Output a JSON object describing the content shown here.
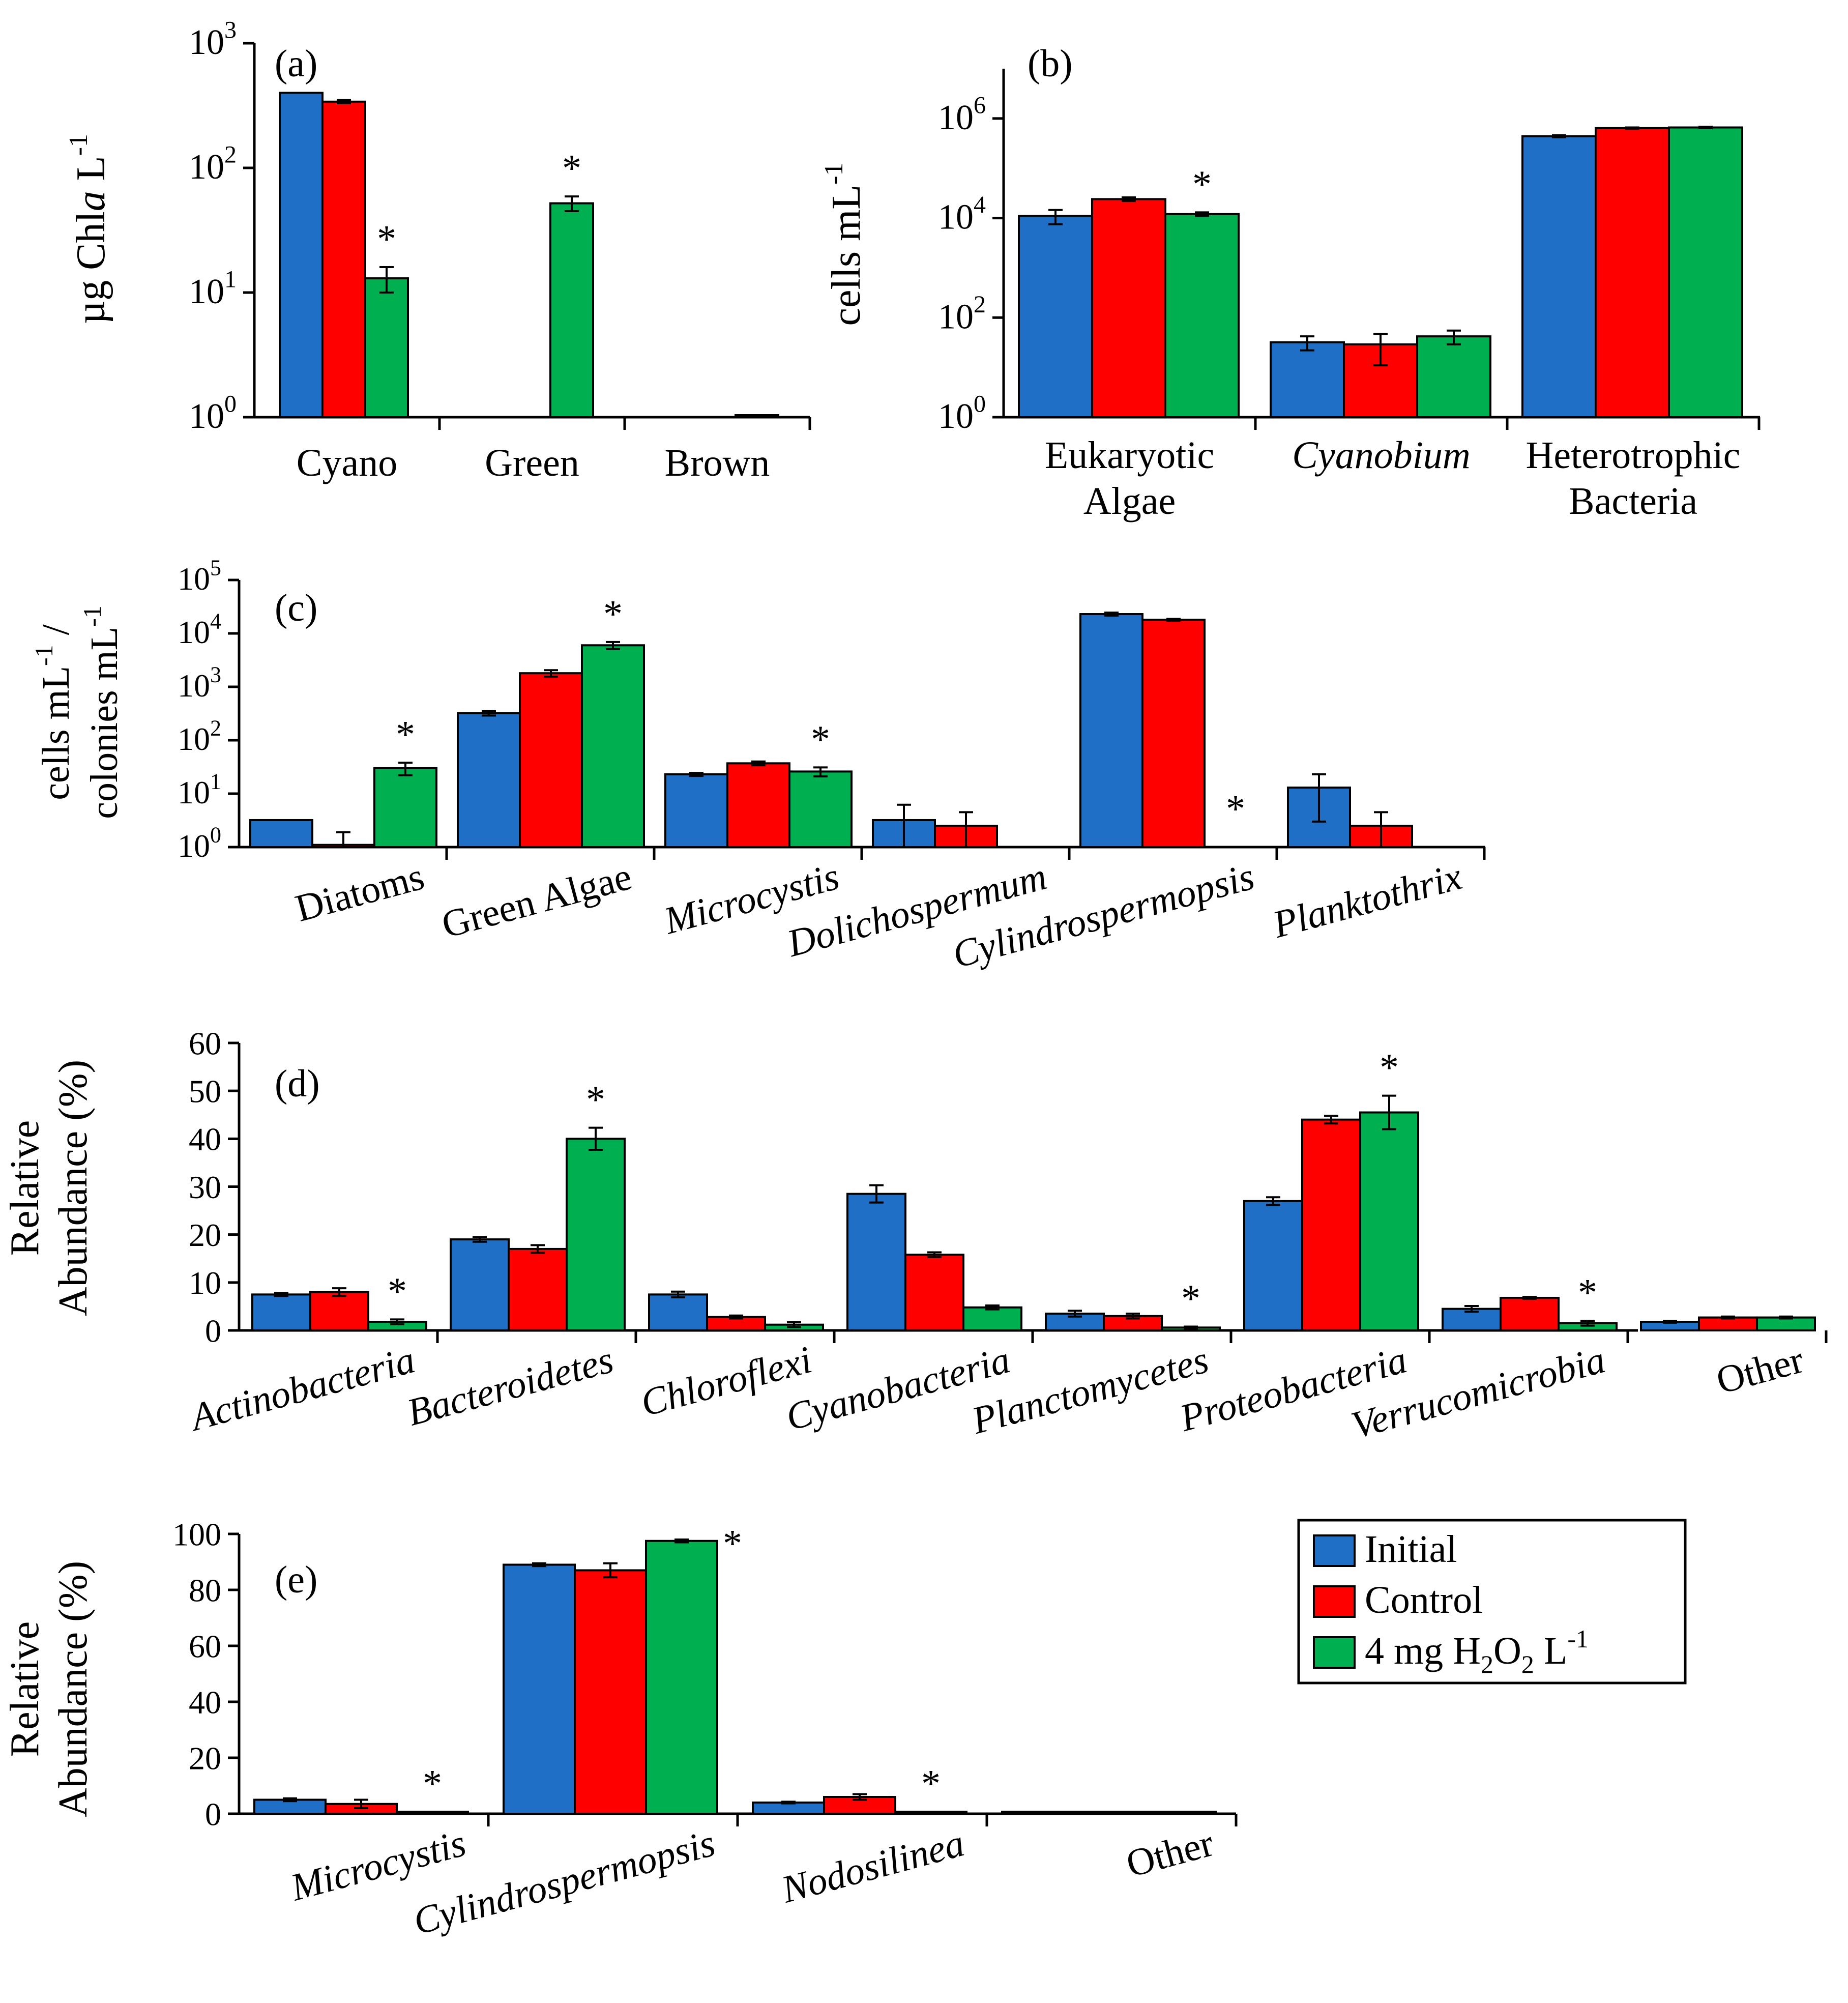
{
  "colors": {
    "initial": "#1f6fc6",
    "control": "#ff0000",
    "h2o2": "#00b050"
  },
  "legend": {
    "entries": [
      {
        "label": "Initial",
        "color": "#1f6fc6"
      },
      {
        "label": "Control",
        "color": "#ff0000"
      },
      {
        "label_parts": [
          "4 mg H",
          "2",
          "O",
          "2",
          " L",
          "-1"
        ],
        "color": "#00b050"
      }
    ]
  },
  "chart_data": [
    {
      "id": "a",
      "panel_label": "(a)",
      "type": "bar",
      "scale": "log",
      "ylim": [
        1,
        1000
      ],
      "yticks": [
        {
          "base": "10",
          "exp": "0"
        },
        {
          "base": "10",
          "exp": "1"
        },
        {
          "base": "10",
          "exp": "2"
        },
        {
          "base": "10",
          "exp": "3"
        }
      ],
      "ylabel_parts": [
        "µg Chl",
        "a",
        " L",
        "-1"
      ],
      "categories": [
        {
          "label": "Cyano",
          "italic": false
        },
        {
          "label": "Green",
          "italic": false
        },
        {
          "label": "Brown",
          "italic": false
        }
      ],
      "series": [
        {
          "name": "Initial",
          "values": [
            400,
            null,
            null
          ],
          "errors": [
            0,
            0,
            0
          ]
        },
        {
          "name": "Control",
          "values": [
            340,
            null,
            null
          ],
          "errors": [
            10,
            0,
            0
          ]
        },
        {
          "name": "4 mg H2O2 L-1",
          "values": [
            13,
            52,
            1.0
          ],
          "errors": [
            3,
            7,
            0
          ]
        }
      ],
      "significance": [
        "*",
        "*",
        ""
      ]
    },
    {
      "id": "b",
      "panel_label": "(b)",
      "type": "bar",
      "scale": "log",
      "ylim": [
        1,
        10000000
      ],
      "yticks": [
        {
          "base": "10",
          "exp": "0"
        },
        {
          "base": "10",
          "exp": "2"
        },
        {
          "base": "10",
          "exp": "4"
        },
        {
          "base": "10",
          "exp": "6"
        }
      ],
      "ylabel_parts": [
        "cells mL",
        "-1"
      ],
      "categories": [
        {
          "lines": [
            "Eukaryotic",
            "Algae"
          ],
          "italic": false
        },
        {
          "lines": [
            "Cyanobium"
          ],
          "italic": true
        },
        {
          "lines": [
            "Heterotrophic",
            "Bacteria"
          ],
          "italic": false
        }
      ],
      "series": [
        {
          "name": "Initial",
          "values": [
            11000,
            32,
            440000
          ],
          "errors": [
            3500,
            10,
            20000
          ]
        },
        {
          "name": "Control",
          "values": [
            24000,
            29,
            640000
          ],
          "errors": [
            2000,
            18,
            20000
          ]
        },
        {
          "name": "4 mg H2O2 L-1",
          "values": [
            12000,
            42,
            660000
          ],
          "errors": [
            1000,
            13,
            20000
          ]
        }
      ],
      "significance": [
        "*",
        "",
        ""
      ]
    },
    {
      "id": "c",
      "panel_label": "(c)",
      "type": "bar",
      "scale": "log",
      "ylim": [
        1,
        100000
      ],
      "yticks": [
        {
          "base": "10",
          "exp": "0"
        },
        {
          "base": "10",
          "exp": "1"
        },
        {
          "base": "10",
          "exp": "2"
        },
        {
          "base": "10",
          "exp": "3"
        },
        {
          "base": "10",
          "exp": "4"
        },
        {
          "base": "10",
          "exp": "5"
        }
      ],
      "ylabel_line1_parts": [
        "cells mL",
        "-1",
        " /"
      ],
      "ylabel_line2_parts": [
        "colonies mL",
        "-1"
      ],
      "categories": [
        {
          "label": "Diatoms",
          "italic": false
        },
        {
          "label": "Green Algae",
          "italic": false
        },
        {
          "label": "Microcystis",
          "italic": true
        },
        {
          "label": "Dolichospermum",
          "italic": true
        },
        {
          "label": "Cylindrospermopsis",
          "italic": true
        },
        {
          "label": "Planktothrix",
          "italic": true
        }
      ],
      "series": [
        {
          "name": "Initial",
          "values": [
            3.2,
            320,
            23,
            3.2,
            23000,
            13
          ],
          "errors": [
            0,
            30,
            1.5,
            3,
            1500,
            10
          ]
        },
        {
          "name": "Control",
          "values": [
            1.1,
            1800,
            37,
            2.5,
            18000,
            2.5
          ],
          "errors": [
            0.8,
            250,
            3,
            2,
            700,
            2
          ]
        },
        {
          "name": "4 mg H2O2 L-1",
          "values": [
            30,
            6000,
            26,
            null,
            null,
            null
          ],
          "errors": [
            8,
            900,
            5,
            0,
            0,
            0
          ]
        }
      ],
      "significance": [
        "*",
        "*",
        "*",
        "",
        "*",
        ""
      ]
    },
    {
      "id": "d",
      "panel_label": "(d)",
      "type": "bar",
      "scale": "linear",
      "ylim": [
        0,
        60
      ],
      "ytick_values": [
        0,
        10,
        20,
        30,
        40,
        50,
        60
      ],
      "ylabel_lines": [
        "Relative",
        "Abundance  (%)"
      ],
      "categories": [
        {
          "label": "Actinobacteria",
          "italic": true
        },
        {
          "label": "Bacteroidetes",
          "italic": true
        },
        {
          "label": "Chloroflexi",
          "italic": true
        },
        {
          "label": "Cyanobacteria",
          "italic": true
        },
        {
          "label": "Planctomycetes",
          "italic": true
        },
        {
          "label": "Proteobacteria",
          "italic": true
        },
        {
          "label": "Verrucomicrobia",
          "italic": true
        },
        {
          "label": "Other",
          "italic": false
        }
      ],
      "series": [
        {
          "name": "Initial",
          "values": [
            7.5,
            19,
            7.5,
            28.5,
            3.5,
            27,
            4.5,
            1.8
          ],
          "errors": [
            0.3,
            0.5,
            0.6,
            1.8,
            0.6,
            0.8,
            0.6,
            0.2
          ]
        },
        {
          "name": "Control",
          "values": [
            8,
            17,
            2.8,
            15.8,
            3.0,
            44,
            6.8,
            2.7
          ],
          "errors": [
            0.8,
            0.8,
            0.3,
            0.5,
            0.5,
            0.8,
            0.2,
            0.2
          ]
        },
        {
          "name": "4 mg H2O2 L-1",
          "values": [
            1.8,
            40,
            1.2,
            4.8,
            0.6,
            45.5,
            1.5,
            2.7
          ],
          "errors": [
            0.5,
            2.3,
            0.5,
            0.4,
            0.2,
            3.5,
            0.5,
            0.2
          ]
        }
      ],
      "significance": [
        "*",
        "*",
        "",
        "",
        "*",
        "*",
        "*",
        ""
      ]
    },
    {
      "id": "e",
      "panel_label": "(e)",
      "type": "bar",
      "scale": "linear",
      "ylim": [
        0,
        100
      ],
      "ytick_values": [
        0,
        20,
        40,
        60,
        80,
        100
      ],
      "ylabel_lines": [
        "Relative",
        "Abundance  (%)"
      ],
      "categories": [
        {
          "label": "Microcystis",
          "italic": true
        },
        {
          "label": "Cylindrospermopsis",
          "italic": true
        },
        {
          "label": "Nodosilinea",
          "italic": true
        },
        {
          "label": "Other",
          "italic": false
        }
      ],
      "series": [
        {
          "name": "Initial",
          "values": [
            5,
            89,
            4,
            0.5
          ],
          "errors": [
            0.5,
            0.5,
            0.3,
            0
          ]
        },
        {
          "name": "Control",
          "values": [
            3.5,
            87,
            6,
            0.5
          ],
          "errors": [
            1.5,
            2.5,
            1,
            0
          ]
        },
        {
          "name": "4 mg H2O2 L-1",
          "values": [
            0.3,
            97.5,
            0.3,
            0.5
          ],
          "errors": [
            0,
            0.5,
            0,
            0
          ]
        }
      ],
      "significance": [
        "*",
        "*",
        "*",
        ""
      ]
    }
  ]
}
